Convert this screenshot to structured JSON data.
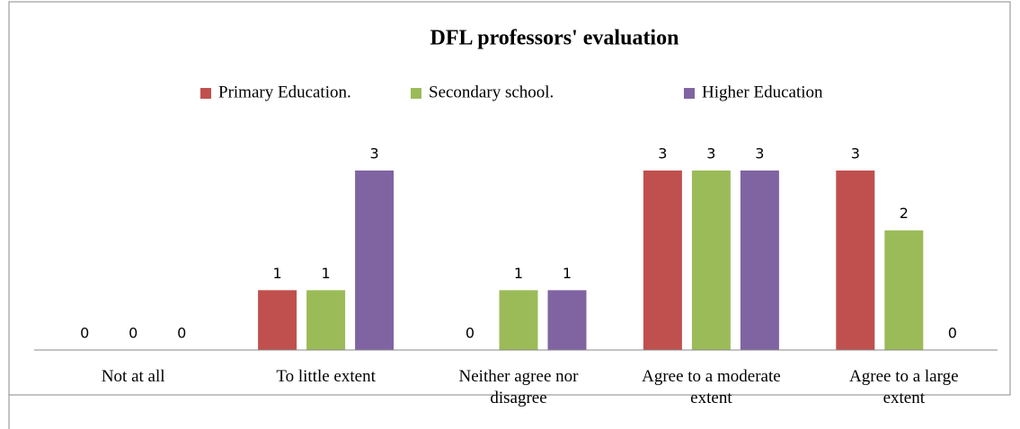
{
  "chart_data": {
    "type": "bar",
    "title": "DFL professors' evaluation",
    "categories": [
      "Not at all",
      "To little extent",
      "Neither agree nor disagree",
      "Agree to a moderate extent",
      "Agree to a large extent"
    ],
    "series": [
      {
        "name": "Primary Education.",
        "color": "#c0504d",
        "values": [
          0,
          1,
          0,
          3,
          3
        ]
      },
      {
        "name": "Secondary school.",
        "color": "#9bbb59",
        "values": [
          0,
          1,
          1,
          3,
          2
        ]
      },
      {
        "name": "Higher Education",
        "color": "#8064a2",
        "values": [
          0,
          3,
          1,
          3,
          0
        ]
      }
    ],
    "ylim": [
      0,
      3
    ],
    "legend": "top"
  }
}
